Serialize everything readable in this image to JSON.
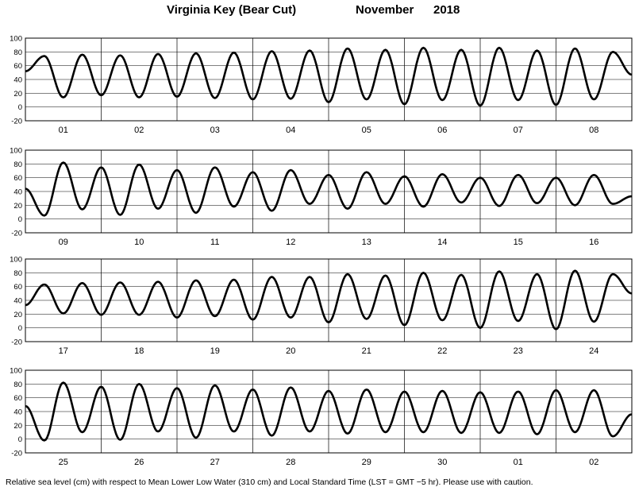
{
  "title": {
    "station": "Virginia Key (Bear Cut)",
    "month": "November",
    "year": "2018"
  },
  "footnote": "Relative sea level (cm) with respect to Mean Lower Low Water (310 cm) and Local Standard Time (LST = GMT −5 hr). Please use with caution.",
  "colors": {
    "line": "#000000",
    "frame": "#000000",
    "background": "#ffffff"
  },
  "chart_data": [
    {
      "type": "line",
      "days": [
        "01",
        "02",
        "03",
        "04",
        "05",
        "06",
        "07",
        "08"
      ],
      "ylim": [
        -20,
        100
      ],
      "yticks": [
        -20,
        0,
        20,
        40,
        60,
        80,
        100
      ],
      "grid": true,
      "series": [
        {
          "values": [
            52,
            74,
            14,
            76,
            17,
            75,
            14,
            77,
            15,
            78,
            13,
            79,
            11,
            81,
            12,
            82,
            7,
            85,
            11,
            83,
            4,
            86,
            10,
            83,
            2,
            86,
            10,
            82,
            3,
            85,
            11,
            80,
            47
          ]
        }
      ]
    },
    {
      "type": "line",
      "days": [
        "09",
        "10",
        "11",
        "12",
        "13",
        "14",
        "15",
        "16"
      ],
      "ylim": [
        -20,
        100
      ],
      "yticks": [
        -20,
        0,
        20,
        40,
        60,
        80,
        100
      ],
      "grid": true,
      "series": [
        {
          "values": [
            44,
            5,
            82,
            14,
            75,
            6,
            79,
            15,
            71,
            9,
            75,
            18,
            68,
            12,
            71,
            22,
            64,
            15,
            68,
            22,
            62,
            18,
            65,
            24,
            60,
            19,
            64,
            23,
            60,
            20,
            64,
            22,
            33
          ]
        }
      ]
    },
    {
      "type": "line",
      "days": [
        "17",
        "18",
        "19",
        "20",
        "21",
        "22",
        "23",
        "24"
      ],
      "ylim": [
        -20,
        100
      ],
      "yticks": [
        -20,
        0,
        20,
        40,
        60,
        80,
        100
      ],
      "grid": true,
      "series": [
        {
          "values": [
            33,
            63,
            21,
            65,
            19,
            66,
            19,
            67,
            15,
            69,
            17,
            70,
            12,
            74,
            15,
            74,
            8,
            78,
            13,
            76,
            4,
            80,
            11,
            77,
            0,
            82,
            10,
            78,
            -2,
            83,
            9,
            78,
            50
          ]
        }
      ]
    },
    {
      "type": "line",
      "days": [
        "25",
        "26",
        "27",
        "28",
        "29",
        "30",
        "01",
        "02"
      ],
      "ylim": [
        -20,
        100
      ],
      "yticks": [
        -20,
        0,
        20,
        40,
        60,
        80,
        100
      ],
      "grid": true,
      "series": [
        {
          "values": [
            48,
            -2,
            82,
            10,
            76,
            -1,
            80,
            11,
            74,
            2,
            78,
            11,
            72,
            5,
            75,
            11,
            70,
            8,
            72,
            10,
            69,
            10,
            70,
            9,
            68,
            9,
            69,
            7,
            71,
            10,
            71,
            4,
            36
          ]
        }
      ]
    }
  ]
}
